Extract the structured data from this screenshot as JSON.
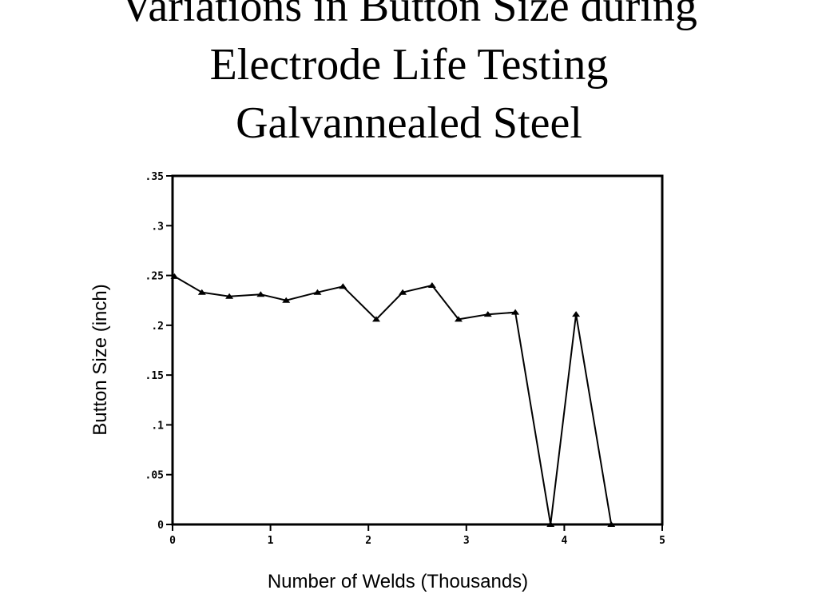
{
  "title_lines": [
    "Variations in Button Size during",
    "Electrode Life Testing",
    "Galvannealed Steel"
  ],
  "chart_data": {
    "type": "line",
    "title": "Variations in Button Size during Electrode Life Testing Galvannealed Steel",
    "xlabel": "Number of Welds (Thousands)",
    "ylabel": "Button Size (inch)",
    "xlim": [
      0,
      5
    ],
    "ylim": [
      0,
      0.35
    ],
    "x_ticks": [
      0,
      1,
      2,
      3,
      4,
      5
    ],
    "x_tick_labels": [
      "0",
      "1",
      "2",
      "3",
      "4",
      "5"
    ],
    "y_ticks": [
      0,
      0.05,
      0.1,
      0.15,
      0.2,
      0.25,
      0.3,
      0.35
    ],
    "y_tick_labels": [
      "0",
      ".05",
      ".1",
      ".15",
      ".2",
      ".25",
      ".3",
      ".35"
    ],
    "grid": false,
    "series": [
      {
        "x": [
          0.02,
          0.3,
          0.58,
          0.9,
          1.16,
          1.48,
          1.74,
          2.08,
          2.35,
          2.65,
          2.92,
          3.22,
          3.5,
          3.86,
          4.12,
          4.48
        ],
        "y": [
          0.249,
          0.233,
          0.229,
          0.231,
          0.225,
          0.233,
          0.239,
          0.206,
          0.233,
          0.24,
          0.206,
          0.211,
          0.213,
          0.0,
          0.211,
          0.0
        ]
      }
    ]
  }
}
